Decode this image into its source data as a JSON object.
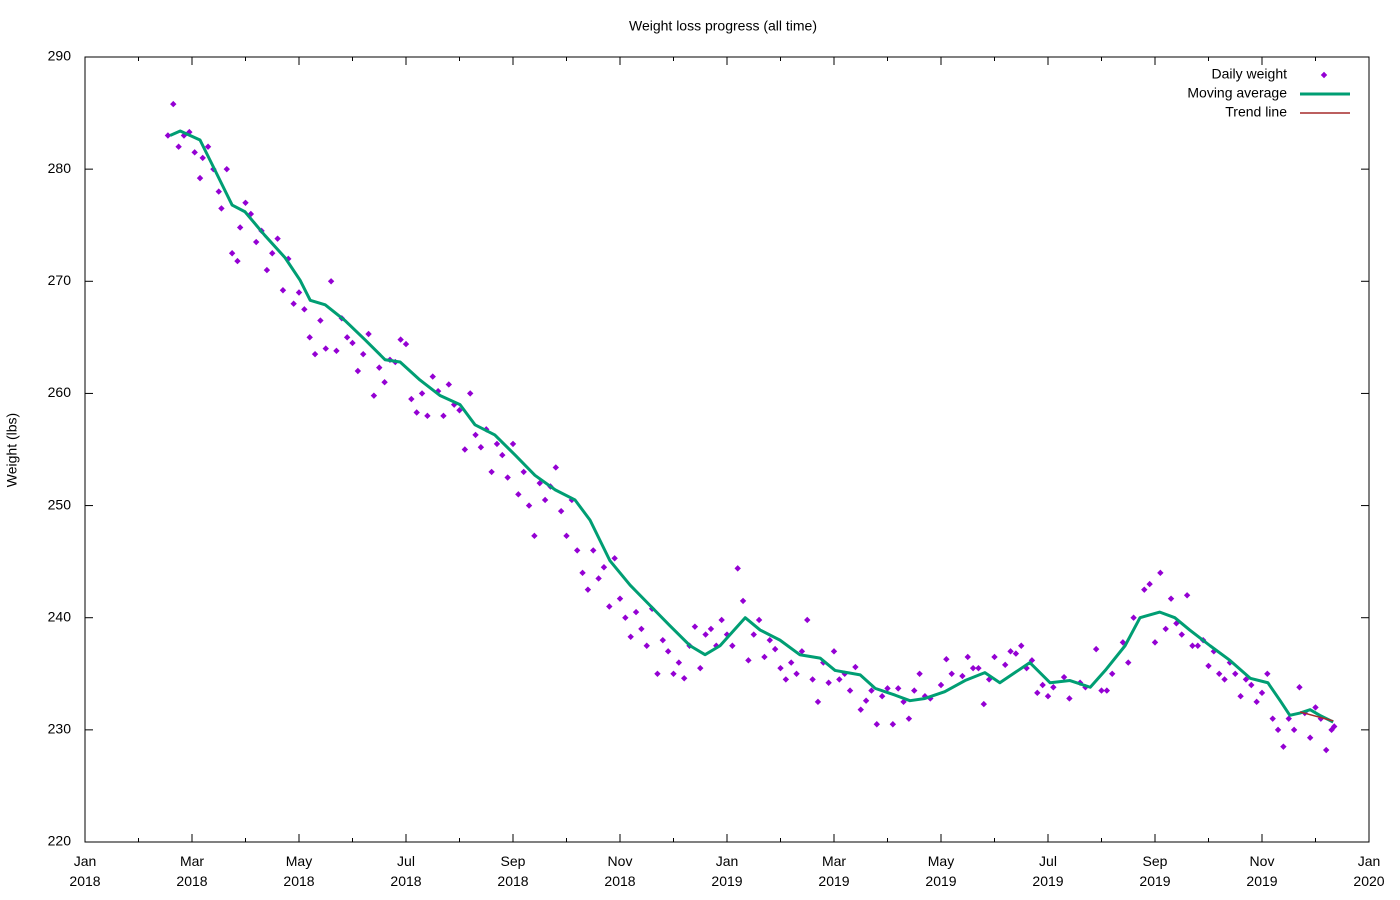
{
  "chart_data": {
    "type": "scatter",
    "title": "Weight loss progress (all time)",
    "y_label": "Weight (lbs)",
    "xlim": [
      0,
      24
    ],
    "xticks": [
      {
        "value": 0,
        "label": "Jan\n2018"
      },
      {
        "value": 2,
        "label": "Mar\n2018"
      },
      {
        "value": 4,
        "label": "May\n2018"
      },
      {
        "value": 6,
        "label": "Jul\n2018"
      },
      {
        "value": 8,
        "label": "Sep\n2018"
      },
      {
        "value": 10,
        "label": "Nov\n2018"
      },
      {
        "value": 12,
        "label": "Jan\n2019"
      },
      {
        "value": 14,
        "label": "Mar\n2019"
      },
      {
        "value": 16,
        "label": "May\n2019"
      },
      {
        "value": 18,
        "label": "Jul\n2019"
      },
      {
        "value": 20,
        "label": "Sep\n2019"
      },
      {
        "value": 22,
        "label": "Nov\n2019"
      },
      {
        "value": 24,
        "label": "Jan\n2020"
      }
    ],
    "ylim": [
      220,
      290
    ],
    "yticks": [
      220,
      230,
      240,
      250,
      260,
      270,
      280,
      290
    ],
    "legend": "top-right",
    "series": [
      {
        "name": "Daily weight",
        "color": "#9400d3",
        "style": "points",
        "x": [
          1.55,
          1.65,
          1.75,
          1.85,
          1.95,
          2.05,
          2.15,
          2.2,
          2.3,
          2.4,
          2.5,
          2.55,
          2.65,
          2.75,
          2.85,
          2.9,
          3.0,
          3.1,
          3.2,
          3.3,
          3.4,
          3.5,
          3.6,
          3.7,
          3.8,
          3.9,
          4.0,
          4.1,
          4.2,
          4.3,
          4.4,
          4.5,
          4.6,
          4.7,
          4.8,
          4.9,
          5.0,
          5.1,
          5.2,
          5.3,
          5.4,
          5.5,
          5.6,
          5.7,
          5.8,
          5.9,
          6.0,
          6.1,
          6.2,
          6.3,
          6.4,
          6.5,
          6.6,
          6.7,
          6.8,
          6.9,
          7.0,
          7.1,
          7.2,
          7.3,
          7.4,
          7.5,
          7.6,
          7.7,
          7.8,
          7.9,
          8.0,
          8.1,
          8.2,
          8.3,
          8.4,
          8.5,
          8.6,
          8.7,
          8.8,
          8.9,
          9.0,
          9.1,
          9.2,
          9.3,
          9.4,
          9.5,
          9.6,
          9.7,
          9.8,
          9.9,
          10.0,
          10.1,
          10.2,
          10.3,
          10.4,
          10.5,
          10.6,
          10.7,
          10.8,
          10.9,
          11.0,
          11.1,
          11.2,
          11.3,
          11.4,
          11.5,
          11.6,
          11.7,
          11.8,
          11.9,
          12.0,
          12.1,
          12.2,
          12.3,
          12.4,
          12.5,
          12.6,
          12.7,
          12.8,
          12.9,
          13.0,
          13.1,
          13.2,
          13.3,
          13.4,
          13.5,
          13.6,
          13.7,
          13.8,
          13.9,
          14.0,
          14.1,
          14.2,
          14.3,
          14.4,
          14.5,
          14.6,
          14.7,
          14.8,
          14.9,
          15.0,
          15.1,
          15.2,
          15.3,
          15.4,
          15.5,
          15.6,
          15.7,
          15.8,
          16.0,
          16.1,
          16.2,
          16.4,
          16.5,
          16.6,
          16.7,
          16.8,
          16.9,
          17.0,
          17.2,
          17.3,
          17.4,
          17.5,
          17.6,
          17.7,
          17.8,
          17.9,
          18.0,
          18.1,
          18.3,
          18.4,
          18.6,
          18.7,
          18.9,
          19.0,
          19.1,
          19.2,
          19.4,
          19.5,
          19.6,
          19.8,
          19.9,
          20.0,
          20.1,
          20.2,
          20.3,
          20.4,
          20.5,
          20.6,
          20.7,
          20.8,
          20.9,
          21.0,
          21.1,
          21.2,
          21.3,
          21.4,
          21.5,
          21.6,
          21.7,
          21.8,
          21.9,
          22.0,
          22.1,
          22.2,
          22.3,
          22.4,
          22.5,
          22.6,
          22.7,
          22.8,
          22.9,
          23.0,
          23.1,
          23.2,
          23.3,
          23.35
        ],
        "values": [
          283,
          285.8,
          282,
          283,
          283.3,
          281.5,
          279.2,
          281,
          282,
          280,
          278,
          276.5,
          280,
          272.5,
          271.8,
          274.8,
          277,
          276,
          273.5,
          274.5,
          271,
          272.5,
          273.8,
          269.2,
          272,
          268,
          269,
          267.5,
          265,
          263.5,
          266.5,
          264,
          270,
          263.8,
          266.7,
          265,
          264.5,
          262,
          263.5,
          265.3,
          259.8,
          262.3,
          261,
          263,
          262.8,
          264.8,
          264.4,
          259.5,
          258.3,
          260,
          258,
          261.5,
          260.2,
          258,
          260.8,
          259,
          258.5,
          255,
          260,
          256.3,
          255.2,
          256.8,
          253,
          255.5,
          254.5,
          252.5,
          255.5,
          251,
          253,
          250,
          247.3,
          252,
          250.5,
          251.7,
          253.4,
          249.5,
          247.3,
          250.5,
          246,
          244,
          242.5,
          246,
          243.5,
          244.5,
          241,
          245.3,
          241.7,
          240,
          238.3,
          240.5,
          239,
          237.5,
          240.8,
          235,
          238,
          237,
          235,
          236,
          234.6,
          237.5,
          239.2,
          235.5,
          238.5,
          239,
          237.5,
          239.8,
          238.5,
          237.5,
          244.4,
          241.5,
          236.2,
          238.5,
          239.8,
          236.5,
          238,
          237.2,
          235.5,
          234.5,
          236,
          235,
          237,
          239.8,
          234.5,
          232.5,
          236,
          234.2,
          237,
          234.5,
          235,
          233.5,
          235.6,
          231.8,
          232.6,
          233.5,
          230.5,
          233,
          233.7,
          230.5,
          233.7,
          232.5,
          231,
          233.5,
          235,
          233,
          232.8,
          234,
          236.3,
          235,
          234.8,
          236.5,
          235.5,
          235.5,
          232.3,
          234.5,
          236.5,
          235.8,
          237,
          236.8,
          237.5,
          235.5,
          236.2,
          233.3,
          234,
          233,
          233.8,
          234.7,
          232.8,
          234.2,
          233.8,
          237.2,
          233.5,
          233.5,
          235,
          237.8,
          236,
          240,
          242.5,
          243,
          237.8,
          244,
          239,
          241.7,
          239.5,
          238.5,
          242,
          237.5,
          237.5,
          238,
          235.7,
          237,
          235,
          234.5,
          236,
          235,
          233,
          234.5,
          234,
          232.5,
          233.3,
          235,
          231,
          230,
          228.5,
          231,
          230,
          233.8,
          231.5,
          229.3,
          232,
          231,
          228.2,
          230,
          230.3
        ]
      },
      {
        "name": "Moving average",
        "color": "#009e73",
        "style": "line",
        "width": 3,
        "x": [
          1.59,
          1.78,
          2.15,
          2.43,
          2.75,
          2.99,
          3.36,
          3.74,
          4.02,
          4.21,
          4.49,
          4.86,
          5.23,
          5.61,
          5.89,
          6.26,
          6.64,
          7.01,
          7.29,
          7.66,
          8.04,
          8.41,
          8.79,
          9.16,
          9.44,
          9.81,
          10.19,
          10.56,
          10.93,
          11.31,
          11.59,
          11.87,
          12.34,
          12.62,
          12.99,
          13.36,
          13.74,
          14.02,
          14.49,
          14.77,
          15.14,
          15.42,
          15.7,
          16.07,
          16.45,
          16.82,
          17.1,
          17.38,
          17.66,
          18.04,
          18.41,
          18.79,
          19.07,
          19.44,
          19.72,
          20.09,
          20.37,
          20.65,
          21.03,
          21.4,
          21.78,
          22.11,
          22.34,
          22.52,
          22.71,
          22.9,
          23.08,
          23.33
        ],
        "values": [
          283,
          283.4,
          282.6,
          279.9,
          276.8,
          276.2,
          274.1,
          272.1,
          270.1,
          268.3,
          267.9,
          266.5,
          264.8,
          263,
          262.8,
          261.2,
          259.8,
          259,
          257.2,
          256.3,
          254.5,
          252.7,
          251.4,
          250.5,
          248.7,
          245.1,
          242.9,
          241.1,
          239.3,
          237.5,
          236.7,
          237.5,
          240,
          238.9,
          238,
          236.7,
          236.4,
          235.3,
          234.9,
          233.7,
          233.1,
          232.6,
          232.8,
          233.4,
          234.4,
          235.1,
          234.2,
          235.1,
          236,
          234.2,
          234.4,
          233.8,
          235.3,
          237.5,
          240,
          240.5,
          240,
          238.9,
          237.5,
          236.2,
          234.6,
          234.2,
          232.6,
          231.3,
          231.5,
          231.8,
          231.3,
          230.7
        ]
      },
      {
        "name": "Trend line",
        "color": "#a52a2a",
        "style": "line",
        "width": 1.5,
        "x": [
          22.71,
          23.33
        ],
        "values": [
          231.6,
          230.8
        ]
      }
    ]
  }
}
